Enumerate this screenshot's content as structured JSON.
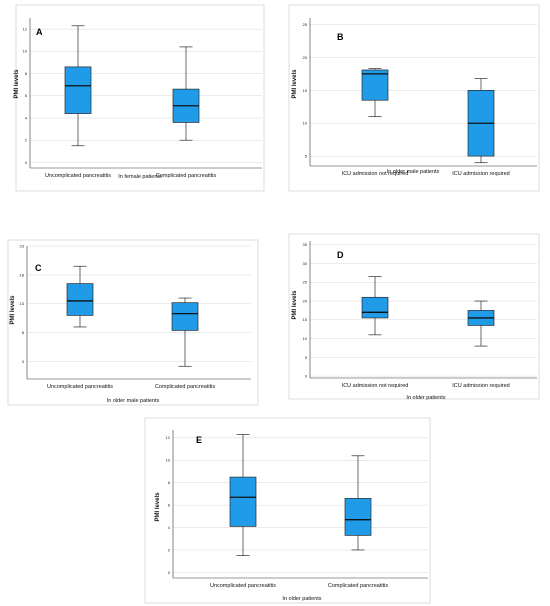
{
  "colors": {
    "box_fill": "#1f9be8",
    "box_stroke": "#2b2b2b",
    "grid": "#d6d6d6",
    "frame": "#c8c8c8"
  },
  "chart_data": [
    {
      "type": "box",
      "panel_label": "A",
      "xlabel": "In female patients",
      "ylabel": "PMI levels",
      "ylim": [
        -0.5,
        13
      ],
      "yticks": [
        0,
        2,
        4,
        6,
        8,
        10,
        12
      ],
      "categories": [
        "Uncomplicated pancreatitis",
        "Complicated pancreatitis"
      ],
      "boxes": [
        {
          "min": 1.5,
          "q1": 4.4,
          "median": 6.9,
          "q3": 8.6,
          "max": 12.3
        },
        {
          "min": 2.0,
          "q1": 3.6,
          "median": 5.1,
          "q3": 6.6,
          "max": 10.4
        }
      ]
    },
    {
      "type": "box",
      "panel_label": "B",
      "xlabel": "In older male patients",
      "ylabel": "PMI levels",
      "ylim": [
        3.5,
        26
      ],
      "yticks": [
        5,
        10,
        15,
        20,
        25
      ],
      "categories": [
        "ICU admission not required",
        "ICU admission required"
      ],
      "boxes": [
        {
          "min": 11.0,
          "q1": 13.5,
          "median": 17.5,
          "q3": 18.1,
          "max": 18.3
        },
        {
          "min": 4.0,
          "q1": 5.0,
          "median": 10.0,
          "q3": 15.0,
          "max": 16.8
        }
      ]
    },
    {
      "type": "box",
      "panel_label": "C",
      "xlabel": "In older male patients",
      "ylabel": "PMI levels",
      "ylim": [
        0,
        23
      ],
      "yticks": [
        3,
        8,
        13,
        18,
        23
      ],
      "categories": [
        "Uncomplicated pancreatitis",
        "Complicated pancreatitis"
      ],
      "boxes": [
        {
          "min": 9.0,
          "q1": 11.0,
          "median": 13.5,
          "q3": 16.5,
          "max": 19.5
        },
        {
          "min": 2.2,
          "q1": 8.4,
          "median": 11.3,
          "q3": 13.2,
          "max": 14.0
        }
      ]
    },
    {
      "type": "box",
      "panel_label": "D",
      "xlabel": "In older patients",
      "ylabel": "PMI levels",
      "ylim": [
        -0.5,
        36
      ],
      "yticks": [
        0,
        5,
        10,
        15,
        20,
        25,
        30,
        35
      ],
      "categories": [
        "ICU admission not required",
        "ICU admission required"
      ],
      "boxes": [
        {
          "min": 11.0,
          "q1": 15.5,
          "median": 17.0,
          "q3": 21.0,
          "max": 26.5
        },
        {
          "min": 8.0,
          "q1": 13.5,
          "median": 15.5,
          "q3": 17.5,
          "max": 20.0
        }
      ]
    },
    {
      "type": "box",
      "panel_label": "E",
      "xlabel": "In older patients",
      "ylabel": "PMI levels",
      "ylim": [
        -0.5,
        12.7
      ],
      "yticks": [
        0,
        2,
        4,
        6,
        8,
        10,
        12
      ],
      "categories": [
        "Uncomplicated pancreatitis",
        "Complicated pancreatitis"
      ],
      "boxes": [
        {
          "min": 1.5,
          "q1": 4.1,
          "median": 6.7,
          "q3": 8.5,
          "max": 12.3
        },
        {
          "min": 2.0,
          "q1": 3.3,
          "median": 4.7,
          "q3": 6.6,
          "max": 10.4
        }
      ]
    }
  ]
}
